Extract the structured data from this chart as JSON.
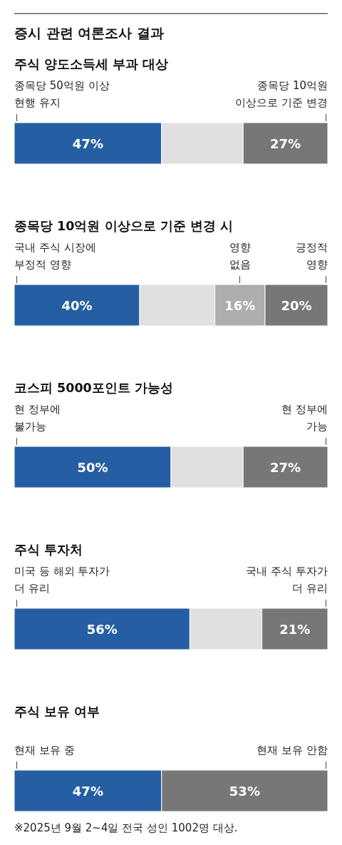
{
  "chart_data": [
    {
      "type": "bar",
      "orientation": "horizontal",
      "stacked": true,
      "title": "증시 관련 여론조사 결과",
      "subtitle": "주식 양도소득세 부과 대상",
      "categories": [
        null
      ],
      "xlim": [
        0,
        100
      ],
      "legend": false,
      "series": [
        {
          "name": "종목당 50억원 이상\n현행 유지",
          "color": "#255ea3",
          "values": [
            47
          ],
          "value_labels": [
            "47%"
          ]
        },
        {
          "color": "#e0e0e0",
          "values": [
            26
          ],
          "value_labels": [
            null
          ]
        },
        {
          "name": "종목당 10억원\n이상으로 기준 변경",
          "color": "#777777",
          "values": [
            27
          ],
          "value_labels": [
            "27%"
          ]
        }
      ]
    },
    {
      "type": "bar",
      "orientation": "horizontal",
      "stacked": true,
      "title": "종목당 10억원 이상으로 기준 변경 시",
      "categories": [
        null
      ],
      "xlim": [
        0,
        100
      ],
      "legend": false,
      "series": [
        {
          "name": "국내 주식 시장에\n부정적 영향",
          "color": "#255ea3",
          "values": [
            40
          ],
          "value_labels": [
            "40%"
          ]
        },
        {
          "color": "#e0e0e0",
          "values": [
            24
          ],
          "value_labels": [
            null
          ]
        },
        {
          "name": "영향\n없음",
          "color": "#adadad",
          "values": [
            16
          ],
          "value_labels": [
            "16%"
          ]
        },
        {
          "name": "긍정적\n영향",
          "color": "#777777",
          "values": [
            20
          ],
          "value_labels": [
            "20%"
          ]
        }
      ]
    },
    {
      "type": "bar",
      "orientation": "horizontal",
      "stacked": true,
      "title": "코스피 5000포인트 가능성",
      "categories": [
        null
      ],
      "xlim": [
        0,
        100
      ],
      "legend": false,
      "series": [
        {
          "name": "현 정부에\n불가능",
          "color": "#255ea3",
          "values": [
            50
          ],
          "value_labels": [
            "50%"
          ]
        },
        {
          "color": "#e0e0e0",
          "values": [
            23
          ],
          "value_labels": [
            null
          ]
        },
        {
          "name": "현 정부에\n가능",
          "color": "#777777",
          "values": [
            27
          ],
          "value_labels": [
            "27%"
          ]
        }
      ]
    },
    {
      "type": "bar",
      "orientation": "horizontal",
      "stacked": true,
      "title": "주식 투자처",
      "categories": [
        null
      ],
      "xlim": [
        0,
        100
      ],
      "legend": false,
      "series": [
        {
          "name": "미국 등 해외 투자가\n더 유리",
          "color": "#255ea3",
          "values": [
            56
          ],
          "value_labels": [
            "56%"
          ]
        },
        {
          "color": "#e0e0e0",
          "values": [
            23
          ],
          "value_labels": [
            null
          ]
        },
        {
          "name": "국내 주식 투자가\n더 유리",
          "color": "#777777",
          "values": [
            21
          ],
          "value_labels": [
            "21%"
          ]
        }
      ]
    },
    {
      "type": "bar",
      "orientation": "horizontal",
      "stacked": true,
      "title": "주식 보유 여부",
      "categories": [
        null
      ],
      "xlim": [
        0,
        100
      ],
      "legend": false,
      "annotations": [
        "※2025년 9월 2~4일 전국 성인 1002명 대상."
      ],
      "series": [
        {
          "name": "현재 보유 중",
          "color": "#255ea3",
          "values": [
            47
          ],
          "value_labels": [
            "47%"
          ]
        },
        {
          "name": "현재 보유 안함",
          "color": "#777777",
          "values": [
            53
          ],
          "value_labels": [
            "53%"
          ]
        }
      ]
    }
  ]
}
